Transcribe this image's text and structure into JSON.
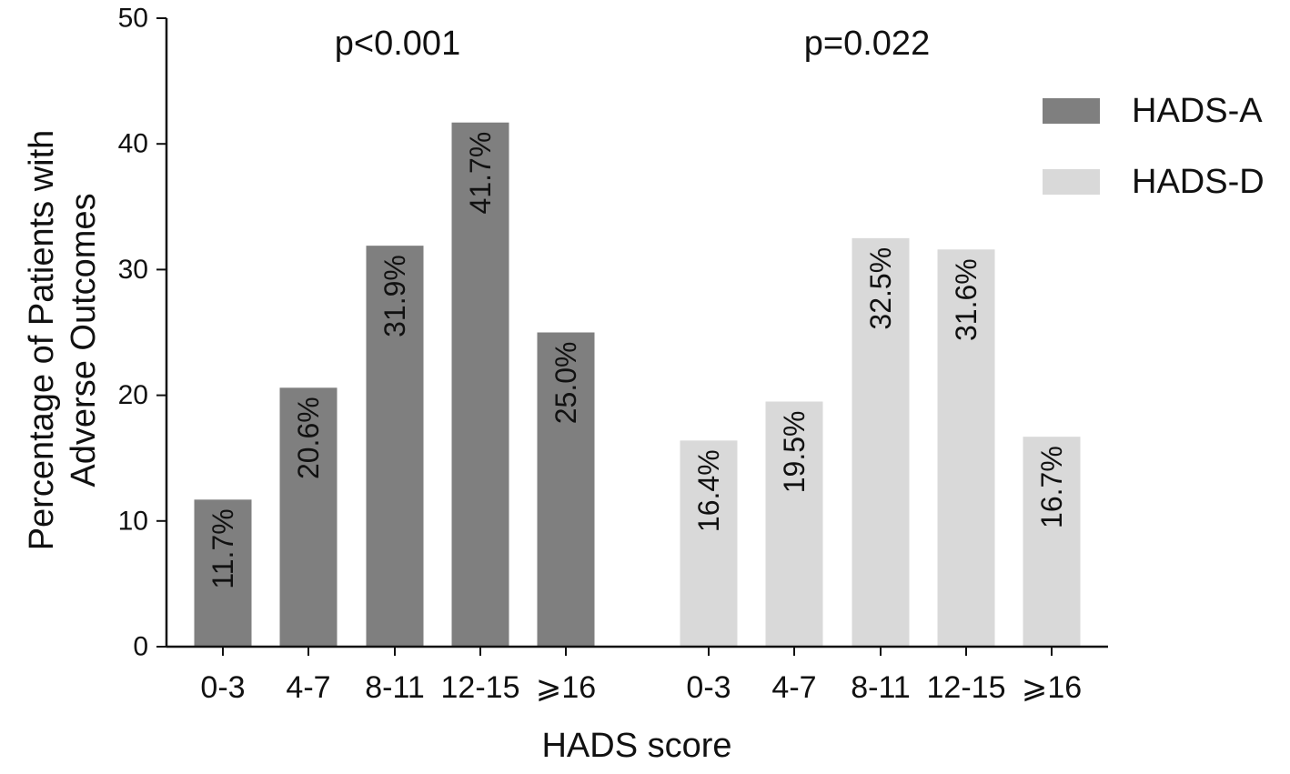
{
  "chart_data": {
    "type": "bar",
    "xlabel": "HADS score",
    "ylabel_lines": [
      "Percentage of Patients with",
      "Adverse Outcomes"
    ],
    "ylim": [
      0,
      50
    ],
    "yticks": [
      0,
      10,
      20,
      30,
      40,
      50
    ],
    "grid": false,
    "legend_position": "right",
    "series": [
      {
        "name": "HADS-A",
        "color": "#7f7f7f",
        "categories": [
          "0-3",
          "4-7",
          "8-11",
          "12-15",
          "⩾16"
        ],
        "values": [
          11.7,
          20.6,
          31.9,
          41.7,
          25.0
        ],
        "labels": [
          "11.7%",
          "20.6%",
          "31.9%",
          "41.7%",
          "25.0%"
        ],
        "p_value": "p<0.001"
      },
      {
        "name": "HADS-D",
        "color": "#d9d9d9",
        "categories": [
          "0-3",
          "4-7",
          "8-11",
          "12-15",
          "⩾16"
        ],
        "values": [
          16.4,
          19.5,
          32.5,
          31.6,
          16.7
        ],
        "labels": [
          "16.4%",
          "19.5%",
          "32.5%",
          "31.6%",
          "16.7%"
        ],
        "p_value": "p=0.022"
      }
    ]
  }
}
